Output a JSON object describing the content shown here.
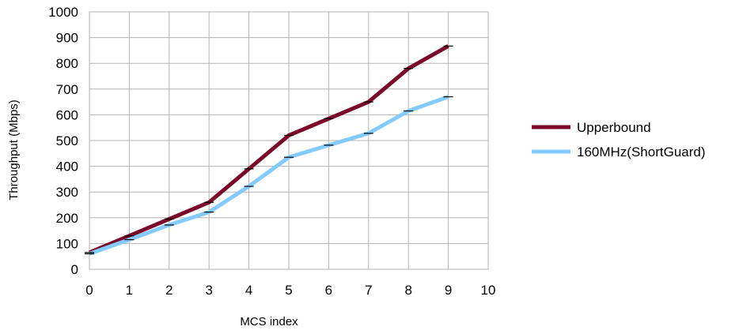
{
  "chart_data": {
    "type": "line",
    "title": "",
    "xlabel": "MCS index",
    "ylabel": "Throughput (Mbps)",
    "xlim": [
      0,
      10
    ],
    "ylim": [
      0,
      1000
    ],
    "x_ticks": [
      0,
      1,
      2,
      3,
      4,
      5,
      6,
      7,
      8,
      9,
      10
    ],
    "y_ticks": [
      0,
      100,
      200,
      300,
      400,
      500,
      600,
      700,
      800,
      900,
      1000
    ],
    "grid": true,
    "legend_position": "right",
    "x": [
      0,
      1,
      2,
      3,
      4,
      5,
      6,
      7,
      8,
      9
    ],
    "series": [
      {
        "name": "Upperbound",
        "color": "#7b0a2a",
        "values": [
          65,
          130,
          195,
          260,
          390,
          520,
          585,
          650,
          780,
          867
        ]
      },
      {
        "name": "160MHz(ShortGuard)",
        "color": "#83caff",
        "values": [
          60,
          115,
          172,
          222,
          322,
          435,
          482,
          528,
          615,
          670
        ]
      }
    ]
  }
}
